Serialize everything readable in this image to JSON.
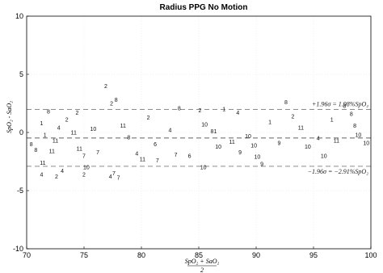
{
  "chart_data": {
    "type": "scatter",
    "title": "Radius PPG No Motion",
    "ylabel": "SpO₂ - SaO₂",
    "xlabel_numerator": "SpO₂ + SaO₂",
    "xlabel_denominator": "2",
    "xlim": [
      70,
      100
    ],
    "ylim": [
      -10,
      10
    ],
    "x_ticks": [
      70,
      75,
      80,
      85,
      90,
      95,
      100
    ],
    "y_ticks": [
      -10,
      -5,
      0,
      5,
      10
    ],
    "grid": true,
    "marker": "subject id digits",
    "reference_lines": [
      {
        "name": "upper",
        "y": 1.98,
        "style": "dashed",
        "label": "+1.96σ = 1.98%SpO₂"
      },
      {
        "name": "bias",
        "y": -0.47,
        "style": "dashed",
        "label": ""
      },
      {
        "name": "lower",
        "y": -2.91,
        "style": "dashed",
        "label": "−1.96σ = −2.91%SpO₂"
      }
    ],
    "points": [
      {
        "x": 70.4,
        "y": -1.0,
        "label": "8"
      },
      {
        "x": 70.8,
        "y": -1.5,
        "label": "8"
      },
      {
        "x": 71.3,
        "y": 0.8,
        "label": "1"
      },
      {
        "x": 71.6,
        "y": -0.2,
        "label": "1"
      },
      {
        "x": 71.9,
        "y": 1.8,
        "label": "8"
      },
      {
        "x": 72.2,
        "y": -1.6,
        "label": "11"
      },
      {
        "x": 72.5,
        "y": -0.7,
        "label": "11"
      },
      {
        "x": 72.8,
        "y": 0.4,
        "label": "4"
      },
      {
        "x": 71.4,
        "y": -2.6,
        "label": "11"
      },
      {
        "x": 71.3,
        "y": -3.6,
        "label": "4"
      },
      {
        "x": 72.6,
        "y": -3.8,
        "label": "2"
      },
      {
        "x": 73.1,
        "y": -3.3,
        "label": "4"
      },
      {
        "x": 73.5,
        "y": 1.1,
        "label": "2"
      },
      {
        "x": 74.1,
        "y": 0.0,
        "label": "11"
      },
      {
        "x": 74.4,
        "y": 1.7,
        "label": "2"
      },
      {
        "x": 74.6,
        "y": -1.4,
        "label": "11"
      },
      {
        "x": 75.0,
        "y": -2.0,
        "label": "7"
      },
      {
        "x": 75.2,
        "y": -3.0,
        "label": "10"
      },
      {
        "x": 75.0,
        "y": -3.6,
        "label": "2"
      },
      {
        "x": 75.8,
        "y": 0.3,
        "label": "10"
      },
      {
        "x": 76.2,
        "y": -1.7,
        "label": "7"
      },
      {
        "x": 76.9,
        "y": 4.0,
        "label": "2"
      },
      {
        "x": 77.4,
        "y": 2.5,
        "label": "2"
      },
      {
        "x": 77.8,
        "y": 2.8,
        "label": "8"
      },
      {
        "x": 77.3,
        "y": -3.8,
        "label": "4"
      },
      {
        "x": 77.6,
        "y": -3.5,
        "label": "7"
      },
      {
        "x": 78.0,
        "y": -3.9,
        "label": "7"
      },
      {
        "x": 78.4,
        "y": 0.6,
        "label": "11"
      },
      {
        "x": 78.9,
        "y": -0.4,
        "label": "8"
      },
      {
        "x": 79.6,
        "y": -1.8,
        "label": "4"
      },
      {
        "x": 80.1,
        "y": -2.3,
        "label": "11"
      },
      {
        "x": 80.6,
        "y": 1.3,
        "label": "2"
      },
      {
        "x": 81.2,
        "y": -1.0,
        "label": "6"
      },
      {
        "x": 81.4,
        "y": -2.4,
        "label": "7"
      },
      {
        "x": 82.5,
        "y": 0.2,
        "label": "4"
      },
      {
        "x": 83.3,
        "y": 2.1,
        "label": "8"
      },
      {
        "x": 83.0,
        "y": -1.9,
        "label": "7"
      },
      {
        "x": 84.2,
        "y": -2.0,
        "label": "6"
      },
      {
        "x": 85.1,
        "y": 1.9,
        "label": "2"
      },
      {
        "x": 85.5,
        "y": 0.7,
        "label": "10"
      },
      {
        "x": 85.4,
        "y": -3.0,
        "label": "10"
      },
      {
        "x": 86.3,
        "y": 0.1,
        "label": "81"
      },
      {
        "x": 86.7,
        "y": -1.2,
        "label": "10"
      },
      {
        "x": 87.2,
        "y": 2.0,
        "label": "1"
      },
      {
        "x": 87.9,
        "y": -0.8,
        "label": "11"
      },
      {
        "x": 88.4,
        "y": 1.7,
        "label": "4"
      },
      {
        "x": 88.6,
        "y": -1.7,
        "label": "9"
      },
      {
        "x": 89.3,
        "y": -0.3,
        "label": "10"
      },
      {
        "x": 89.8,
        "y": -1.1,
        "label": "10"
      },
      {
        "x": 90.1,
        "y": -2.1,
        "label": "10"
      },
      {
        "x": 90.5,
        "y": -2.7,
        "label": "9"
      },
      {
        "x": 91.2,
        "y": 0.9,
        "label": "1"
      },
      {
        "x": 92.0,
        "y": -0.9,
        "label": "9"
      },
      {
        "x": 92.6,
        "y": 2.6,
        "label": "8"
      },
      {
        "x": 93.2,
        "y": 1.4,
        "label": "2"
      },
      {
        "x": 93.9,
        "y": 0.4,
        "label": "11"
      },
      {
        "x": 94.5,
        "y": -1.2,
        "label": "10"
      },
      {
        "x": 95.4,
        "y": -0.5,
        "label": "4"
      },
      {
        "x": 95.9,
        "y": -2.0,
        "label": "10"
      },
      {
        "x": 96.6,
        "y": 1.1,
        "label": "1"
      },
      {
        "x": 97.0,
        "y": -0.7,
        "label": "11"
      },
      {
        "x": 97.7,
        "y": 2.3,
        "label": "8"
      },
      {
        "x": 98.3,
        "y": 1.6,
        "label": "8"
      },
      {
        "x": 98.6,
        "y": 0.6,
        "label": "8"
      },
      {
        "x": 98.9,
        "y": -0.2,
        "label": "10"
      },
      {
        "x": 99.6,
        "y": -0.9,
        "label": "10"
      }
    ]
  }
}
